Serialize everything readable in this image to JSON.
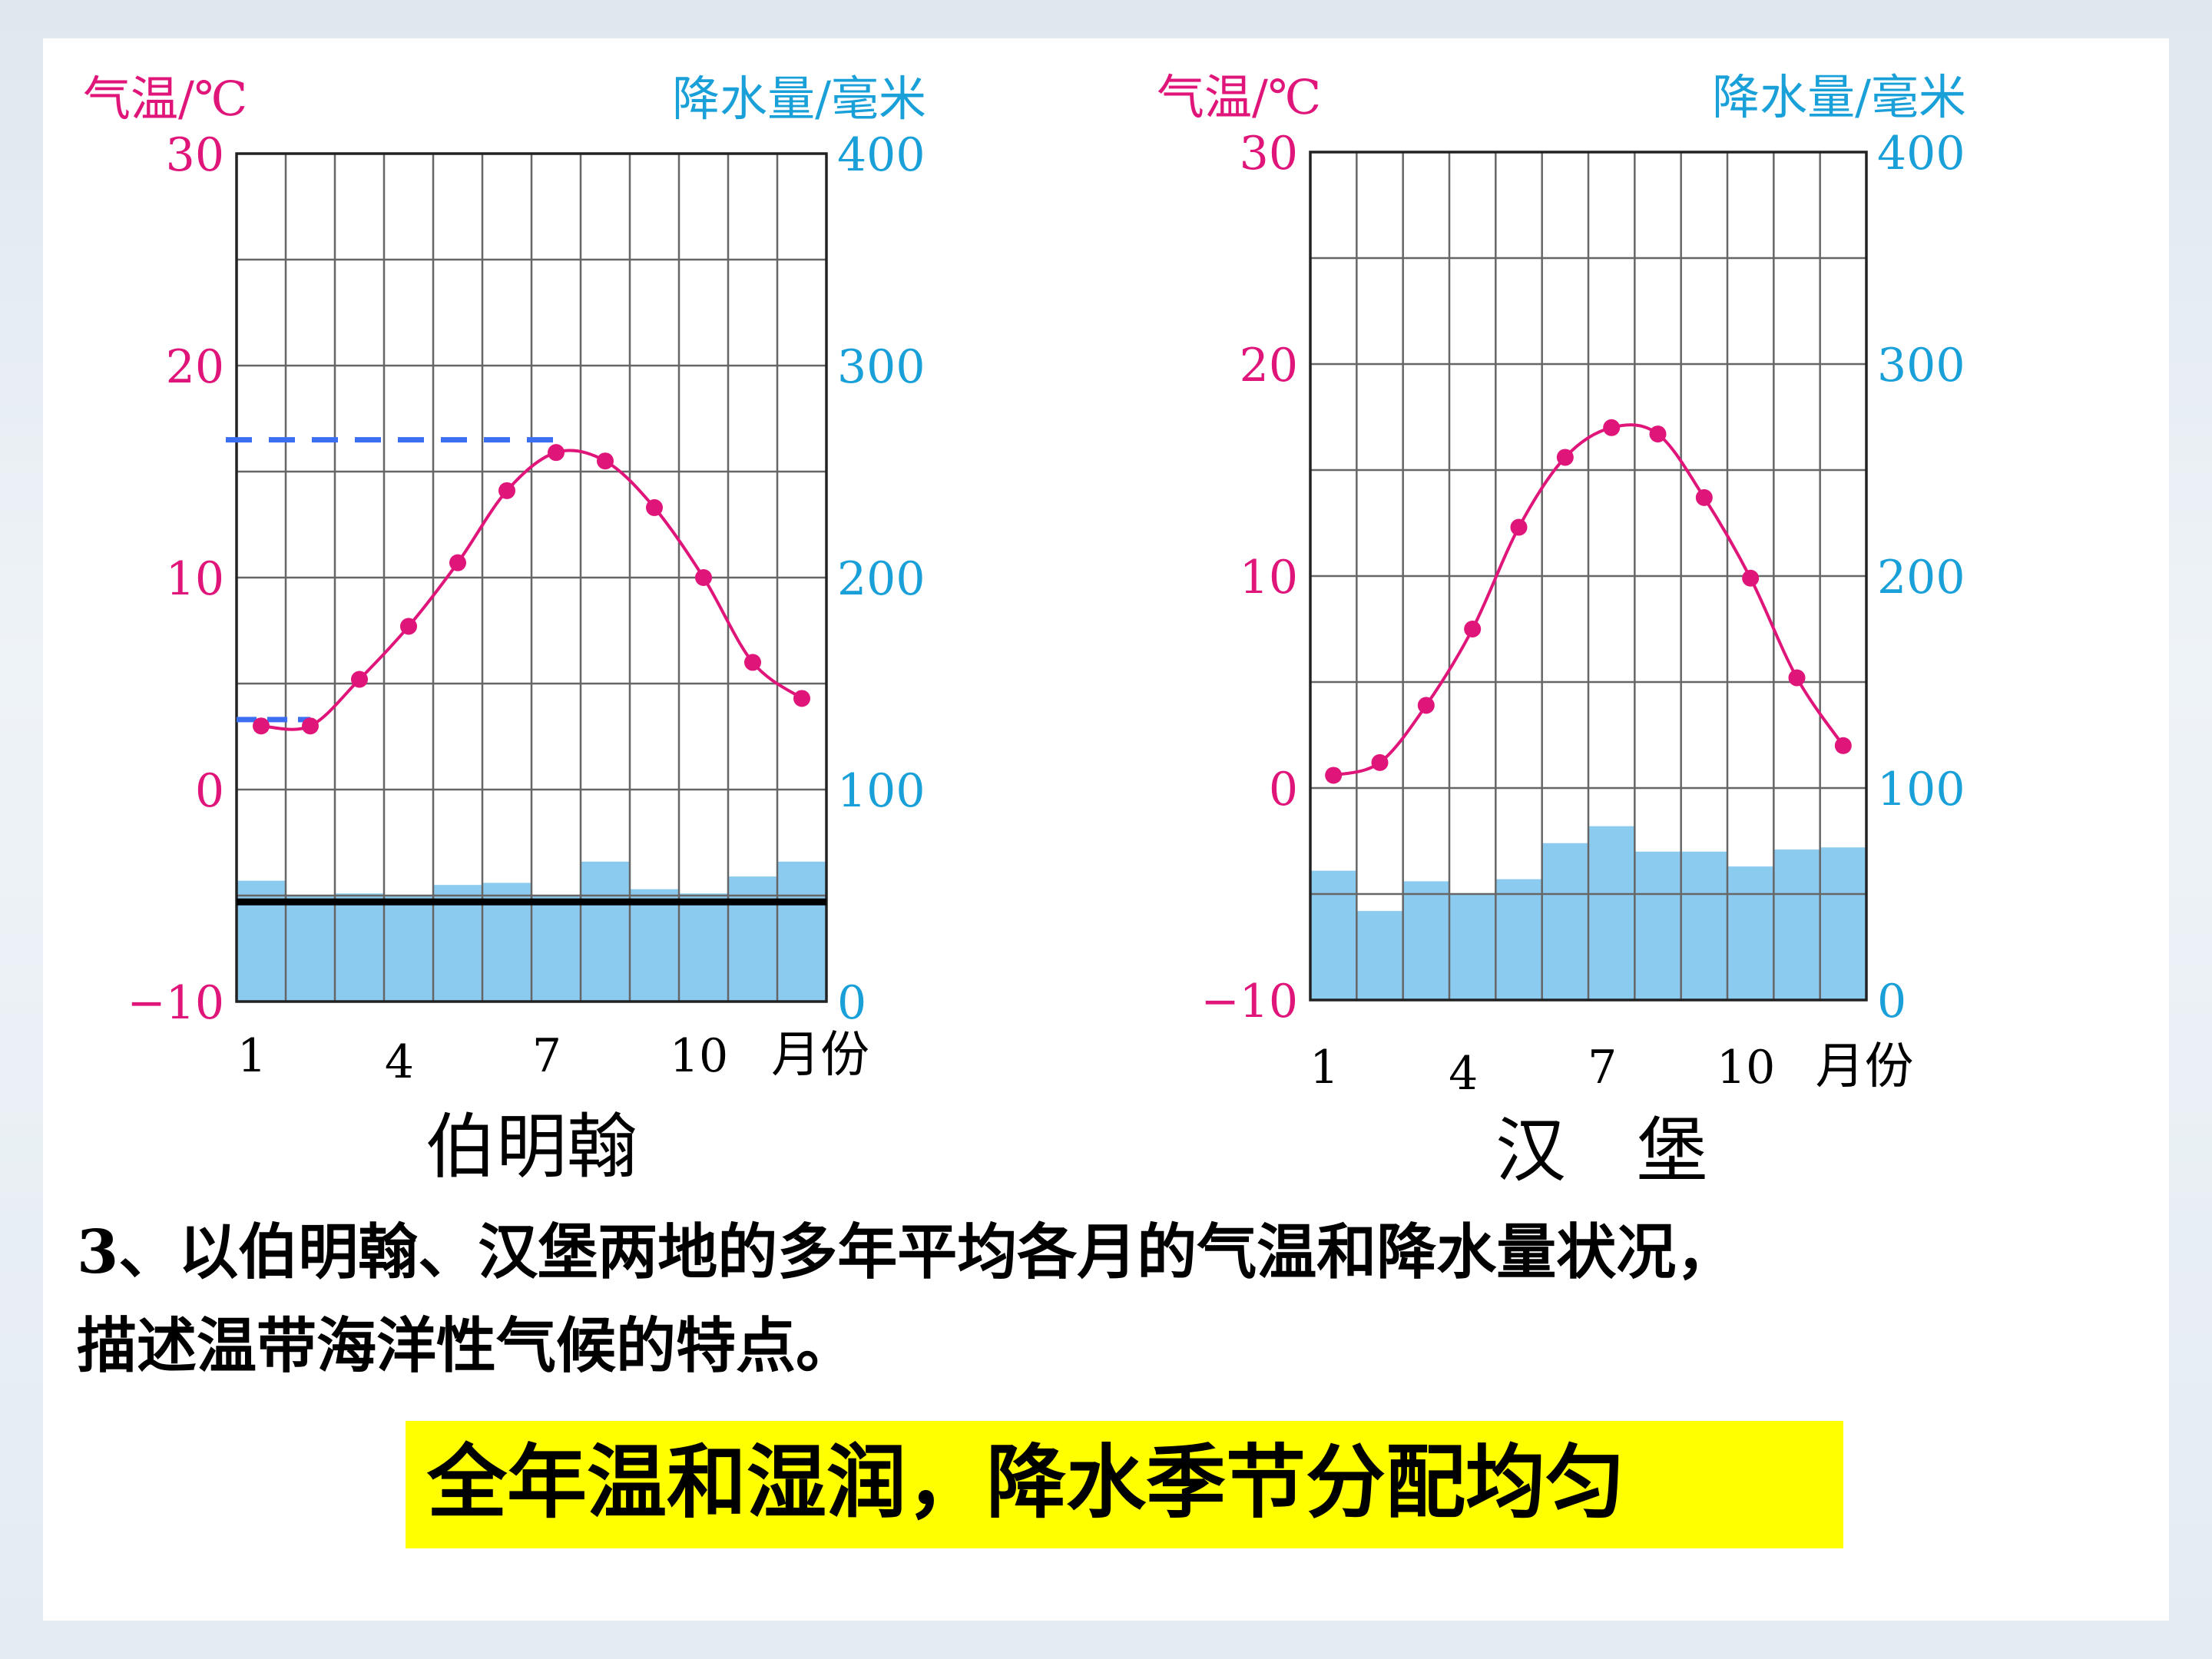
{
  "chart_data": [
    {
      "type": "climate",
      "title": "伯明翰",
      "left_axis_label": "气温/℃",
      "right_axis_label": "降水量/毫米",
      "xlabel_unit": "月份",
      "x_ticks": [
        "1",
        "4",
        "7",
        "10"
      ],
      "months": [
        1,
        2,
        3,
        4,
        5,
        6,
        7,
        8,
        9,
        10,
        11,
        12
      ],
      "temperature_ylim": [
        -10,
        30
      ],
      "temperature_ticks": [
        "−10",
        "0",
        "10",
        "20",
        "30"
      ],
      "precipitation_ylim": [
        0,
        400
      ],
      "precipitation_ticks": [
        "0",
        "100",
        "200",
        "300",
        "400"
      ],
      "series": [
        {
          "name": "气温",
          "kind": "line",
          "values": [
            3.0,
            3.0,
            5.2,
            7.7,
            10.7,
            14.1,
            15.9,
            15.5,
            13.3,
            10.0,
            6.0,
            4.3
          ]
        },
        {
          "name": "降水量",
          "kind": "bar",
          "values": [
            57,
            50,
            51,
            50,
            55,
            56,
            50,
            66,
            53,
            51,
            59,
            66
          ]
        }
      ],
      "annotations": {
        "dashed_lines_temperature": [
          16.5,
          3.3
        ],
        "solid_line_precipitation": 47
      }
    },
    {
      "type": "climate",
      "title": "汉　堡",
      "left_axis_label": "气温/℃",
      "right_axis_label": "降水量/毫米",
      "xlabel_unit": "月份",
      "x_ticks": [
        "1",
        "4",
        "7",
        "10"
      ],
      "months": [
        1,
        2,
        3,
        4,
        5,
        6,
        7,
        8,
        9,
        10,
        11,
        12
      ],
      "temperature_ylim": [
        -10,
        30
      ],
      "temperature_ticks": [
        "−10",
        "0",
        "10",
        "20",
        "30"
      ],
      "precipitation_ylim": [
        0,
        400
      ],
      "precipitation_ticks": [
        "0",
        "100",
        "200",
        "300",
        "400"
      ],
      "series": [
        {
          "name": "气温",
          "kind": "line",
          "values": [
            0.6,
            1.2,
            3.9,
            7.5,
            12.3,
            15.6,
            17.0,
            16.7,
            13.7,
            9.9,
            5.2,
            2.0
          ]
        },
        {
          "name": "降水量",
          "kind": "bar",
          "values": [
            61,
            42,
            56,
            50,
            57,
            74,
            82,
            70,
            70,
            63,
            71,
            72
          ]
        }
      ]
    }
  ],
  "colors": {
    "temperature_line": "#e0157a",
    "precipitation_bar": "#8ccbf0",
    "axis_text_left": "#e0157a",
    "axis_text_right": "#1aa0d8",
    "grid": "#666666",
    "dashed_marker": "#3b6ef0",
    "highlight": "#ffff00"
  },
  "question": {
    "line1": "3、以伯明翰、汉堡两地的多年平均各月的气温和降水量状况，",
    "line2": "描述温带海洋性气候的特点。"
  },
  "answer": "全年温和湿润，降水季节分配均匀"
}
